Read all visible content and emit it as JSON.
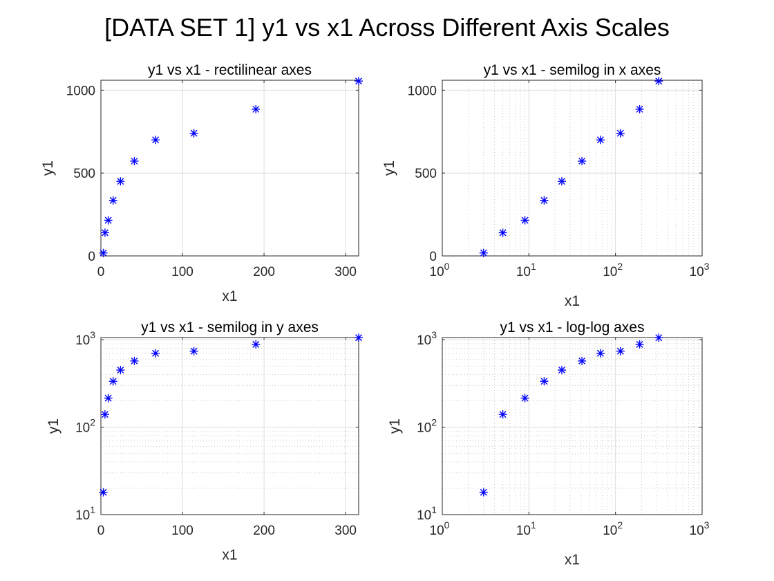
{
  "figure_title": "[DATA SET 1] y1 vs x1 Across Different Axis Scales",
  "colors": {
    "marker": "#0000ff",
    "frame": "#262626",
    "grid": "#dcdcdc"
  },
  "chart_data": [
    {
      "type": "scatter",
      "title": "y1 vs x1 - rectilinear axes",
      "xlabel": "x1",
      "ylabel": "y1",
      "xscale": "linear",
      "yscale": "linear",
      "xlim": [
        0,
        316
      ],
      "ylim": [
        0,
        1060
      ],
      "xticks": [
        0,
        100,
        200,
        300
      ],
      "yticks": [
        0,
        500,
        1000
      ],
      "marker": "asterisk",
      "grid": true,
      "series": [
        {
          "x": [
            3,
            5,
            9,
            15,
            24,
            41,
            67,
            114,
            190,
            316
          ],
          "y": [
            18,
            140,
            215,
            335,
            450,
            572,
            700,
            740,
            885,
            1055
          ]
        }
      ]
    },
    {
      "type": "scatter",
      "title": "y1 vs x1 - semilog in x axes",
      "xlabel": "x1",
      "ylabel": "y1",
      "xscale": "log",
      "yscale": "linear",
      "xlim": [
        1,
        1000
      ],
      "ylim": [
        0,
        1060
      ],
      "xticks": [
        1,
        10,
        100,
        1000
      ],
      "yticks": [
        0,
        500,
        1000
      ],
      "marker": "asterisk",
      "grid": true,
      "series": [
        {
          "x": [
            3,
            5,
            9,
            15,
            24,
            41,
            67,
            114,
            190,
            316
          ],
          "y": [
            18,
            140,
            215,
            335,
            450,
            572,
            700,
            740,
            885,
            1055
          ]
        }
      ]
    },
    {
      "type": "scatter",
      "title": "y1 vs x1 - semilog in y axes",
      "xlabel": "x1",
      "ylabel": "y1",
      "xscale": "linear",
      "yscale": "log",
      "xlim": [
        0,
        316
      ],
      "ylim": [
        10,
        1060
      ],
      "xticks": [
        0,
        100,
        200,
        300
      ],
      "yticks": [
        10,
        100,
        1000
      ],
      "marker": "asterisk",
      "grid": true,
      "series": [
        {
          "x": [
            3,
            5,
            9,
            15,
            24,
            41,
            67,
            114,
            190,
            316
          ],
          "y": [
            18,
            140,
            215,
            335,
            450,
            572,
            700,
            740,
            885,
            1055
          ]
        }
      ]
    },
    {
      "type": "scatter",
      "title": "y1 vs x1 - log-log axes",
      "xlabel": "x1",
      "ylabel": "y1",
      "xscale": "log",
      "yscale": "log",
      "xlim": [
        1,
        1000
      ],
      "ylim": [
        10,
        1060
      ],
      "xticks": [
        1,
        10,
        100,
        1000
      ],
      "yticks": [
        10,
        100,
        1000
      ],
      "marker": "asterisk",
      "grid": true,
      "series": [
        {
          "x": [
            3,
            5,
            9,
            15,
            24,
            41,
            67,
            114,
            190,
            316
          ],
          "y": [
            18,
            140,
            215,
            335,
            450,
            572,
            700,
            740,
            885,
            1055
          ]
        }
      ]
    }
  ]
}
